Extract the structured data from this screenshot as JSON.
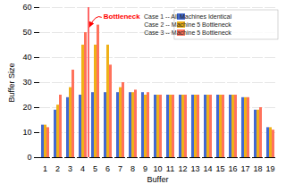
{
  "chart_data": {
    "type": "bar",
    "categories": [
      "1",
      "2",
      "3",
      "4",
      "5",
      "6",
      "7",
      "8",
      "9",
      "10",
      "11",
      "12",
      "13",
      "14",
      "15",
      "16",
      "17",
      "18",
      "19"
    ],
    "series": [
      {
        "name": "Case 1 -- All Machines Identical",
        "values": [
          13,
          19,
          24,
          25,
          26,
          26,
          26,
          26,
          26,
          25,
          25,
          25,
          25,
          25,
          25,
          25,
          24,
          19,
          12
        ]
      },
      {
        "name": "Case 2 -- Machine 5 Bottleneck",
        "values": [
          13,
          21,
          28,
          45,
          45,
          45,
          28,
          26,
          25,
          25,
          25,
          25,
          25,
          25,
          25,
          25,
          24,
          19,
          12
        ]
      },
      {
        "name": "Case 3 -- Machine 5 Bottleneck",
        "values": [
          12,
          25,
          35,
          50,
          53,
          37,
          30,
          27,
          26,
          25,
          25,
          25,
          25,
          25,
          25,
          25,
          24,
          20,
          11
        ]
      }
    ],
    "xlabel": "Buffer",
    "ylabel": "Buffer Size",
    "ylim": [
      0,
      60
    ],
    "yticks": [
      0,
      10,
      20,
      30,
      40,
      50,
      60
    ],
    "grid": true,
    "legend": "upper right",
    "annotations": [
      {
        "text": "Bottleneck",
        "between": [
          "4",
          "5"
        ],
        "y": 52,
        "color": "red"
      }
    ]
  }
}
